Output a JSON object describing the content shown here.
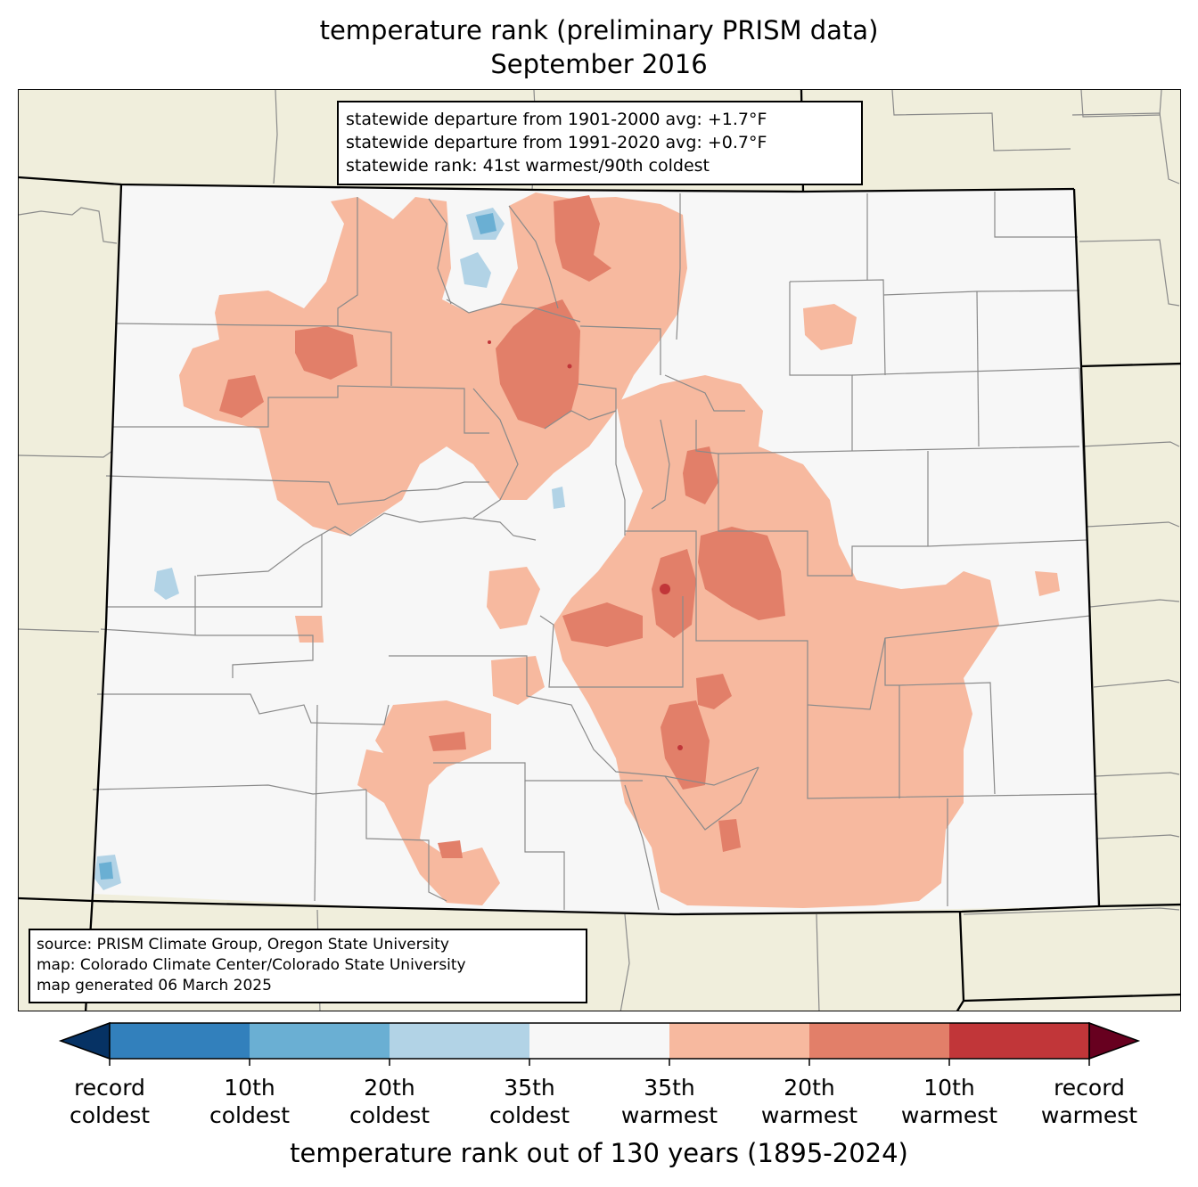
{
  "title": {
    "line1": "temperature rank (preliminary PRISM data)",
    "line2": "September 2016"
  },
  "stats_box": {
    "line1": "statewide departure from 1901-2000 avg: +1.7°F",
    "line2": "statewide departure from 1991-2020 avg: +0.7°F",
    "line3": "statewide rank: 41st warmest/90th coldest"
  },
  "source_box": {
    "line1": "source: PRISM Climate Group, Oregon State University",
    "line2": "map: Colorado Climate Center/Colorado State University",
    "line3": "map generated 06 March 2025"
  },
  "colors": {
    "background_land": "#f0eedc",
    "state_fill": "#f7f7f7",
    "warm_35": "#f7b99f",
    "warm_20": "#e27f69",
    "warm_10": "#c13639",
    "record_warm": "#67001f",
    "cold_35": "#b2d3e6",
    "cold_20": "#6aafd3",
    "cold_10": "#3280bc",
    "record_cold": "#063264"
  },
  "colorbar": {
    "bins": [
      {
        "color": "#3280bc"
      },
      {
        "color": "#6aafd3"
      },
      {
        "color": "#b2d3e6"
      },
      {
        "color": "#f7f7f7"
      },
      {
        "color": "#f7b99f"
      },
      {
        "color": "#e27f69"
      },
      {
        "color": "#c13639"
      }
    ],
    "extend_low_color": "#063264",
    "extend_high_color": "#67001f",
    "tick_labels": [
      {
        "line1": "record",
        "line2": "coldest"
      },
      {
        "line1": "10th",
        "line2": "coldest"
      },
      {
        "line1": "20th",
        "line2": "coldest"
      },
      {
        "line1": "35th",
        "line2": "coldest"
      },
      {
        "line1": "35th",
        "line2": "warmest"
      },
      {
        "line1": "20th",
        "line2": "warmest"
      },
      {
        "line1": "10th",
        "line2": "warmest"
      },
      {
        "line1": "record",
        "line2": "warmest"
      }
    ],
    "axis_label": "temperature rank out of 130 years (1895-2024)"
  }
}
